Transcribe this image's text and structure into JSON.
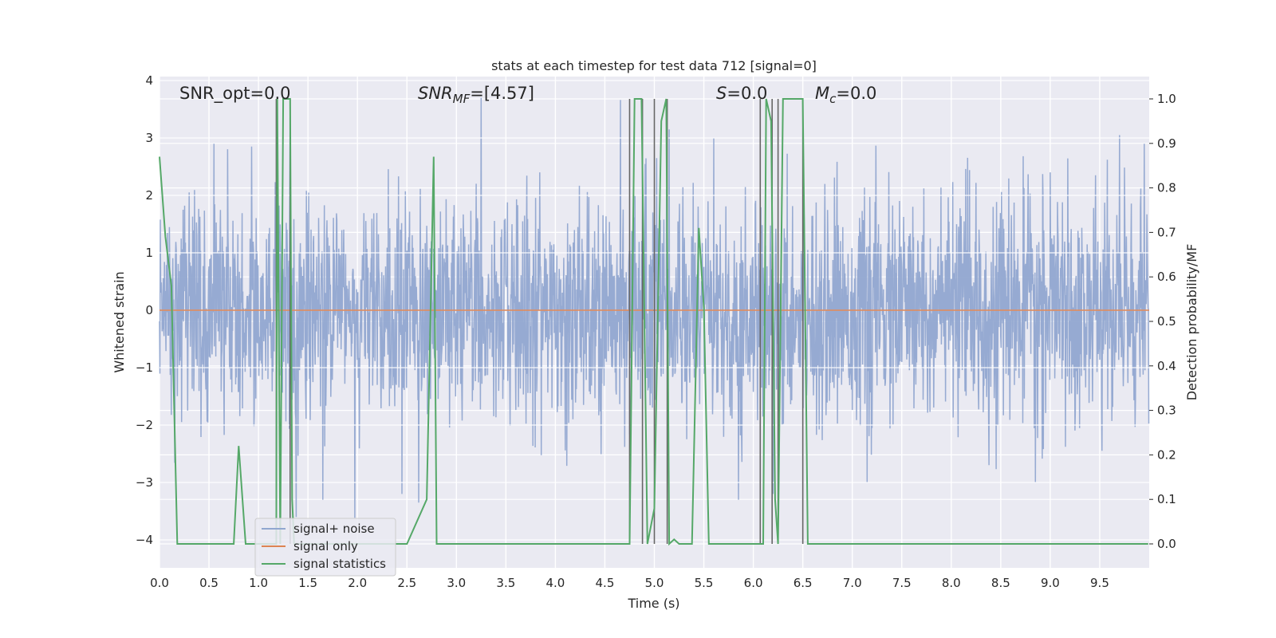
{
  "chart_data": {
    "type": "line",
    "title": "stats at each timestep for test data 712 [signal=0]",
    "xlabel": "Time (s)",
    "ylabel_left": "Whitened strain",
    "ylabel_right": "Detection probability/MF",
    "xlim": [
      0,
      10
    ],
    "ylim_left": [
      -4.4,
      4.1
    ],
    "ylim_right": [
      -0.05,
      1.04
    ],
    "grid": true,
    "legend_position": "lower-left",
    "x_ticks": [
      "0.0",
      "0.5",
      "1.0",
      "1.5",
      "2.0",
      "2.5",
      "3.0",
      "3.5",
      "4.0",
      "4.5",
      "5.0",
      "5.5",
      "6.0",
      "6.5",
      "7.0",
      "7.5",
      "8.0",
      "8.5",
      "9.0",
      "9.5"
    ],
    "y_ticks_left": [
      "4",
      "3",
      "2",
      "1",
      "0",
      "−1",
      "−2",
      "−3",
      "−4"
    ],
    "y_ticks_right": [
      "1.0",
      "0.9",
      "0.8",
      "0.7",
      "0.6",
      "0.5",
      "0.4",
      "0.3",
      "0.2",
      "0.1",
      "0.0"
    ],
    "annotations": {
      "snr_opt": "SNR_opt=0.0",
      "snr_mf_base": "SNR",
      "snr_mf_sub": "MF",
      "snr_mf_value": "=[4.57]",
      "s_symbol": "S",
      "s_value": "=0.0",
      "mc_symbol": "M",
      "mc_sub": "c",
      "mc_value": "=0.0"
    },
    "legend": [
      {
        "label": "signal+ noise",
        "color": "#91a7d0"
      },
      {
        "label": "signal only",
        "color": "#dd8452"
      },
      {
        "label": "signal statistics",
        "color": "#55a868"
      }
    ],
    "series": [
      {
        "name": "signal+ noise",
        "axis": "left",
        "color": "#91a7d0",
        "description": "whitened noise, std ~1, peaks to about ±3.8",
        "peaks": [
          {
            "x": 0.55,
            "y": 2.9
          },
          {
            "x": 0.93,
            "y": 2.85
          },
          {
            "x": 1.32,
            "y": 3.35
          },
          {
            "x": 1.38,
            "y": -3.6
          },
          {
            "x": 1.65,
            "y": -3.3
          },
          {
            "x": 2.45,
            "y": -3.2
          },
          {
            "x": 2.62,
            "y": -3.35
          },
          {
            "x": 3.25,
            "y": 3.7
          },
          {
            "x": 5.15,
            "y": 3.15
          },
          {
            "x": 5.6,
            "y": 3.0
          },
          {
            "x": 5.85,
            "y": -3.3
          },
          {
            "x": 6.2,
            "y": -3.2
          },
          {
            "x": 7.15,
            "y": -3.0
          },
          {
            "x": 8.85,
            "y": -3.0
          },
          {
            "x": 9.7,
            "y": 3.05
          },
          {
            "x": 9.95,
            "y": 2.9
          }
        ]
      },
      {
        "name": "signal only",
        "axis": "left",
        "color": "#dd8452",
        "x": [
          0,
          10
        ],
        "y": [
          0,
          0
        ]
      },
      {
        "name": "signal statistics",
        "axis": "right",
        "color": "#55a868",
        "x": [
          0,
          0.06,
          0.12,
          0.18,
          0.2,
          0.25,
          0.5,
          0.75,
          0.8,
          0.87,
          1.0,
          1.15,
          1.18,
          1.19,
          1.22,
          1.25,
          1.28,
          1.32,
          1.34,
          1.36,
          2.5,
          2.7,
          2.77,
          2.8,
          2.9,
          4.5,
          4.75,
          4.8,
          4.87,
          4.93,
          5.0,
          5.07,
          5.12,
          5.15,
          5.2,
          5.25,
          5.38,
          5.45,
          5.5,
          5.55,
          5.62,
          6.05,
          6.1,
          6.13,
          6.18,
          6.22,
          6.25,
          6.3,
          6.45,
          6.5,
          6.55,
          7.0,
          8.0,
          9.0,
          9.99
        ],
        "y": [
          0.87,
          0.69,
          0.58,
          0.0,
          0.0,
          0.0,
          0.0,
          0.0,
          0.22,
          0.0,
          0.0,
          0.0,
          0.0,
          1.0,
          0.0,
          1.0,
          1.0,
          1.0,
          0.1,
          0.0,
          0.0,
          0.1,
          0.87,
          0.0,
          0.0,
          0.0,
          0.0,
          1.0,
          1.0,
          0.0,
          0.08,
          0.95,
          1.0,
          0.0,
          0.01,
          0.0,
          0.0,
          0.71,
          0.53,
          0.0,
          0.0,
          0.0,
          0.0,
          1.0,
          0.95,
          0.1,
          0.0,
          1.0,
          1.0,
          1.0,
          0.0,
          0.0,
          0.0,
          0.0,
          0.0
        ]
      }
    ],
    "vertical_markers": {
      "color": "#666666",
      "x": [
        1.18,
        1.32,
        4.75,
        4.88,
        5.0,
        5.13,
        6.07,
        6.19,
        6.25,
        6.5
      ]
    }
  }
}
